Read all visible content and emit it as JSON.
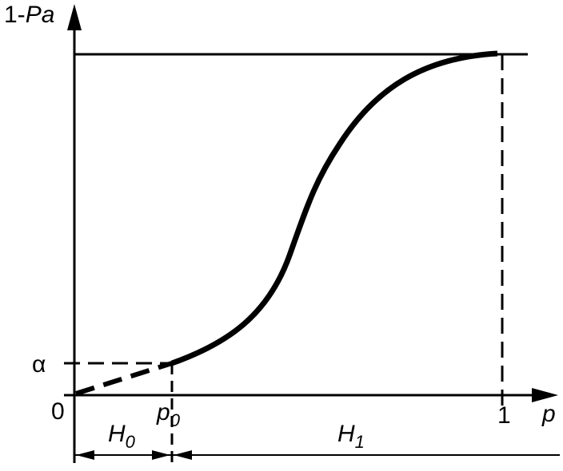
{
  "axes": {
    "y_label": {
      "text": "1-",
      "italic": "Pa"
    },
    "x_label": "p",
    "origin": "0",
    "x_end": "1"
  },
  "marks": {
    "alpha": "α",
    "p0": {
      "base": "p",
      "sub": "0"
    }
  },
  "regions": {
    "h0": {
      "base": "H",
      "sub": "0"
    },
    "h1": {
      "base": "H",
      "sub": "1"
    }
  }
}
